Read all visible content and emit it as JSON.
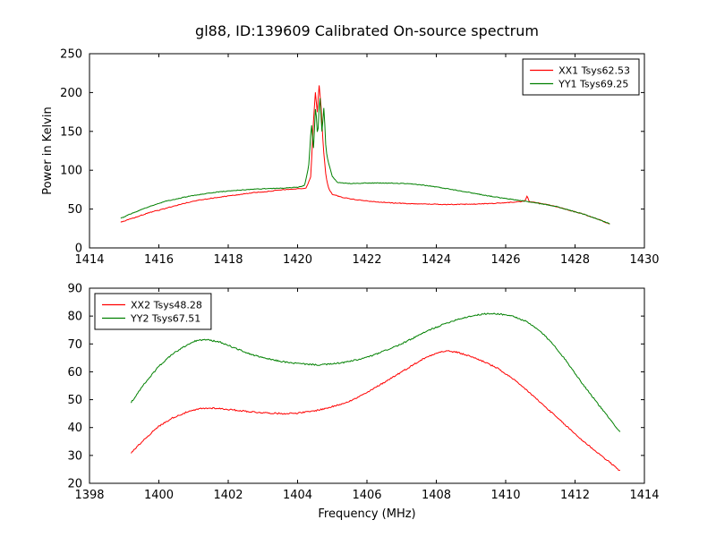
{
  "title": "gl88, ID:139609 Calibrated On-source spectrum",
  "background_color": "#ffffff",
  "chart_data": [
    {
      "type": "line",
      "title": "",
      "xlabel": "",
      "ylabel": "Power in Kelvin",
      "xlim": [
        1414,
        1430
      ],
      "ylim": [
        0,
        250
      ],
      "xticks": [
        1414,
        1416,
        1418,
        1420,
        1422,
        1424,
        1426,
        1428,
        1430
      ],
      "yticks": [
        0,
        50,
        100,
        150,
        200,
        250
      ],
      "grid": false,
      "legend_position": "upper right",
      "series": [
        {
          "name": "XX1 Tsys62.53",
          "color": "#ff0000",
          "points": [
            [
              1414.9,
              33
            ],
            [
              1415.3,
              39
            ],
            [
              1415.7,
              45
            ],
            [
              1416.2,
              51
            ],
            [
              1416.7,
              57
            ],
            [
              1417.2,
              62
            ],
            [
              1417.7,
              65
            ],
            [
              1418.2,
              68
            ],
            [
              1418.7,
              71
            ],
            [
              1419.2,
              73
            ],
            [
              1419.6,
              75
            ],
            [
              1420.0,
              76
            ],
            [
              1420.25,
              77
            ],
            [
              1420.38,
              92
            ],
            [
              1420.46,
              165
            ],
            [
              1420.52,
              205
            ],
            [
              1420.56,
              170
            ],
            [
              1420.62,
              210
            ],
            [
              1420.68,
              180
            ],
            [
              1420.74,
              130
            ],
            [
              1420.82,
              92
            ],
            [
              1420.9,
              76
            ],
            [
              1421.0,
              69
            ],
            [
              1421.3,
              65
            ],
            [
              1421.7,
              62
            ],
            [
              1422.2,
              59.5
            ],
            [
              1422.7,
              58
            ],
            [
              1423.2,
              57
            ],
            [
              1423.7,
              56.5
            ],
            [
              1424.2,
              56
            ],
            [
              1424.7,
              56
            ],
            [
              1425.2,
              56.5
            ],
            [
              1425.7,
              57.5
            ],
            [
              1426.1,
              58.5
            ],
            [
              1426.4,
              59.5
            ],
            [
              1426.55,
              60
            ],
            [
              1426.62,
              67
            ],
            [
              1426.68,
              59.5
            ],
            [
              1427.0,
              57.5
            ],
            [
              1427.4,
              54
            ],
            [
              1427.8,
              49
            ],
            [
              1428.2,
              44
            ],
            [
              1428.6,
              38
            ],
            [
              1429.0,
              31
            ]
          ]
        },
        {
          "name": "YY1 Tsys69.25",
          "color": "#008000",
          "points": [
            [
              1414.9,
              38
            ],
            [
              1415.3,
              46
            ],
            [
              1415.7,
              53
            ],
            [
              1416.2,
              60
            ],
            [
              1416.7,
              65
            ],
            [
              1417.2,
              69
            ],
            [
              1417.7,
              72
            ],
            [
              1418.2,
              74
            ],
            [
              1418.7,
              75.5
            ],
            [
              1419.2,
              76.5
            ],
            [
              1419.6,
              77
            ],
            [
              1420.0,
              78
            ],
            [
              1420.2,
              80
            ],
            [
              1420.32,
              105
            ],
            [
              1420.4,
              160
            ],
            [
              1420.46,
              128
            ],
            [
              1420.52,
              185
            ],
            [
              1420.58,
              140
            ],
            [
              1420.64,
              200
            ],
            [
              1420.7,
              148
            ],
            [
              1420.76,
              182
            ],
            [
              1420.82,
              125
            ],
            [
              1420.9,
              108
            ],
            [
              1421.0,
              92
            ],
            [
              1421.15,
              84
            ],
            [
              1421.5,
              83
            ],
            [
              1422.0,
              83.5
            ],
            [
              1422.5,
              83.5
            ],
            [
              1423.0,
              83
            ],
            [
              1423.5,
              81.5
            ],
            [
              1424.0,
              78.5
            ],
            [
              1424.5,
              75
            ],
            [
              1425.0,
              71
            ],
            [
              1425.5,
              67
            ],
            [
              1426.0,
              63.5
            ],
            [
              1426.5,
              60.5
            ],
            [
              1427.0,
              57
            ],
            [
              1427.4,
              54
            ],
            [
              1427.8,
              49
            ],
            [
              1428.2,
              44
            ],
            [
              1428.6,
              38
            ],
            [
              1429.0,
              31
            ]
          ]
        }
      ]
    },
    {
      "type": "line",
      "title": "",
      "xlabel": "Frequency (MHz)",
      "ylabel": "",
      "xlim": [
        1398,
        1414
      ],
      "ylim": [
        20,
        90
      ],
      "xticks": [
        1398,
        1400,
        1402,
        1404,
        1406,
        1408,
        1410,
        1412,
        1414
      ],
      "yticks": [
        20,
        30,
        40,
        50,
        60,
        70,
        80,
        90
      ],
      "grid": false,
      "legend_position": "upper left",
      "series": [
        {
          "name": "XX2 Tsys48.28",
          "color": "#ff0000",
          "points": [
            [
              1399.2,
              31
            ],
            [
              1399.6,
              36
            ],
            [
              1400.0,
              40.5
            ],
            [
              1400.4,
              43.5
            ],
            [
              1400.8,
              45.5
            ],
            [
              1401.2,
              46.8
            ],
            [
              1401.6,
              47
            ],
            [
              1402.0,
              46.5
            ],
            [
              1402.4,
              46
            ],
            [
              1402.8,
              45.5
            ],
            [
              1403.2,
              45.2
            ],
            [
              1403.6,
              45
            ],
            [
              1404.0,
              45.2
            ],
            [
              1404.4,
              45.8
            ],
            [
              1404.8,
              46.8
            ],
            [
              1405.2,
              48.2
            ],
            [
              1405.6,
              50
            ],
            [
              1406.0,
              52.5
            ],
            [
              1406.4,
              55.5
            ],
            [
              1406.8,
              58.5
            ],
            [
              1407.2,
              61.5
            ],
            [
              1407.6,
              64.5
            ],
            [
              1408.0,
              66.8
            ],
            [
              1408.3,
              67.5
            ],
            [
              1408.6,
              67
            ],
            [
              1409.0,
              65.5
            ],
            [
              1409.4,
              63.5
            ],
            [
              1409.8,
              61
            ],
            [
              1410.2,
              57.5
            ],
            [
              1410.6,
              53.5
            ],
            [
              1411.0,
              49
            ],
            [
              1411.4,
              44.5
            ],
            [
              1411.8,
              40
            ],
            [
              1412.2,
              35.5
            ],
            [
              1412.6,
              31.5
            ],
            [
              1413.0,
              27.5
            ],
            [
              1413.3,
              24.5
            ]
          ]
        },
        {
          "name": "YY2 Tsys67.51",
          "color": "#008000",
          "points": [
            [
              1399.2,
              49
            ],
            [
              1399.6,
              56
            ],
            [
              1400.0,
              62
            ],
            [
              1400.4,
              66.5
            ],
            [
              1400.8,
              69.5
            ],
            [
              1401.1,
              71.3
            ],
            [
              1401.4,
              71.5
            ],
            [
              1401.8,
              70.5
            ],
            [
              1402.2,
              68.5
            ],
            [
              1402.6,
              66.5
            ],
            [
              1403.0,
              65
            ],
            [
              1403.4,
              64
            ],
            [
              1403.8,
              63.2
            ],
            [
              1404.2,
              62.8
            ],
            [
              1404.6,
              62.5
            ],
            [
              1405.0,
              62.8
            ],
            [
              1405.4,
              63.5
            ],
            [
              1405.8,
              64.5
            ],
            [
              1406.2,
              66
            ],
            [
              1406.6,
              68
            ],
            [
              1407.0,
              70
            ],
            [
              1407.4,
              72.5
            ],
            [
              1407.8,
              75
            ],
            [
              1408.2,
              77
            ],
            [
              1408.6,
              78.8
            ],
            [
              1409.0,
              80
            ],
            [
              1409.4,
              80.8
            ],
            [
              1409.8,
              80.8
            ],
            [
              1410.2,
              80
            ],
            [
              1410.6,
              78
            ],
            [
              1411.0,
              74.5
            ],
            [
              1411.4,
              69.5
            ],
            [
              1411.8,
              63
            ],
            [
              1412.2,
              56
            ],
            [
              1412.6,
              49.5
            ],
            [
              1413.0,
              43
            ],
            [
              1413.3,
              38.5
            ]
          ]
        }
      ]
    }
  ]
}
